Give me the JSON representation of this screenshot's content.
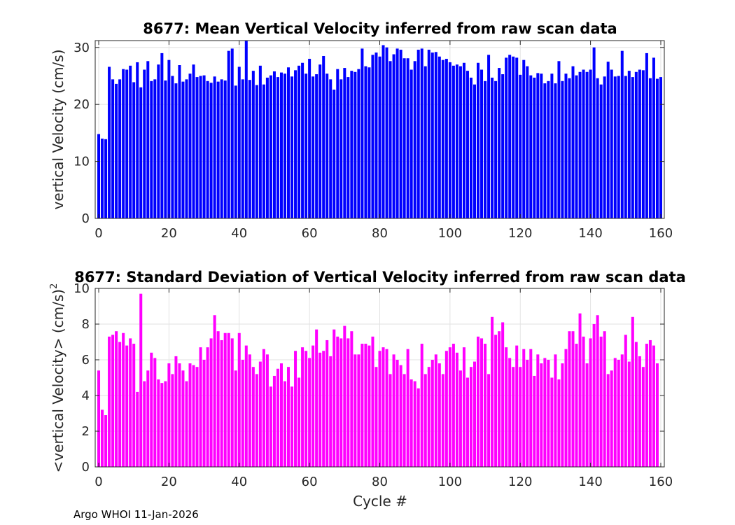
{
  "footer": "Argo WHOI 11-Jan-2026",
  "chart_data": [
    {
      "type": "bar",
      "title": "8677: Mean Vertical Velocity inferred from raw scan data",
      "xlabel": "",
      "ylabel": "vertical Velocity (cm/s)",
      "xlim": [
        -1,
        161
      ],
      "ylim": [
        0,
        31.2
      ],
      "xticks": [
        0,
        20,
        40,
        60,
        80,
        100,
        120,
        140,
        160
      ],
      "yticks": [
        0,
        10,
        20,
        30
      ],
      "grid": true,
      "color": "#0000ff",
      "x_start": 0,
      "values": [
        14.8,
        14.0,
        13.9,
        26.6,
        24.4,
        23.6,
        24.4,
        26.2,
        26.1,
        26.8,
        23.9,
        27.4,
        23.0,
        26.1,
        27.6,
        24.1,
        24.4,
        27.0,
        29.0,
        24.2,
        27.8,
        25.0,
        23.7,
        26.9,
        24.0,
        24.4,
        25.4,
        27.0,
        24.8,
        25.0,
        25.1,
        24.1,
        23.8,
        24.9,
        24.0,
        24.4,
        24.2,
        29.4,
        29.8,
        23.3,
        26.6,
        24.4,
        31.2,
        24.3,
        25.9,
        23.4,
        26.8,
        23.5,
        24.7,
        25.1,
        25.8,
        24.8,
        25.6,
        25.4,
        26.5,
        24.9,
        26.0,
        26.8,
        27.3,
        25.4,
        28.0,
        24.9,
        25.3,
        27.0,
        28.5,
        25.4,
        24.4,
        22.6,
        26.2,
        24.4,
        26.4,
        24.8,
        25.9,
        25.7,
        26.2,
        29.8,
        26.7,
        26.5,
        28.7,
        29.1,
        28.4,
        30.4,
        30.0,
        27.6,
        28.8,
        29.8,
        29.6,
        28.1,
        28.1,
        26.1,
        27.6,
        29.6,
        29.8,
        26.7,
        29.6,
        29.1,
        29.2,
        28.4,
        27.8,
        28.0,
        27.4,
        26.8,
        27.0,
        26.7,
        27.3,
        25.9,
        24.7,
        23.5,
        27.3,
        26.1,
        24.1,
        28.7,
        24.7,
        24.1,
        26.4,
        25.3,
        28.2,
        28.7,
        28.4,
        28.2,
        25.2,
        27.8,
        26.7,
        25.1,
        24.7,
        25.5,
        25.4,
        23.7,
        24.1,
        25.4,
        23.7,
        27.6,
        24.1,
        25.4,
        24.6,
        26.7,
        25.1,
        25.7,
        26.1,
        25.7,
        26.1,
        30.0,
        24.6,
        23.5,
        24.9,
        27.5,
        26.1,
        24.9,
        25.0,
        29.4,
        25.0,
        25.9,
        24.8,
        25.7,
        26.1,
        26.0,
        29.0,
        24.6,
        28.2,
        24.5,
        24.8
      ]
    },
    {
      "type": "bar",
      "title": "8677: Standard Deviation of Vertical Velocity inferred from raw scan data",
      "xlabel": "Cycle #",
      "ylabel": "<vertical Velocity> (cm/s)",
      "ylabel_exponent": "2",
      "xlim": [
        -1,
        161
      ],
      "ylim": [
        0,
        10
      ],
      "xticks": [
        0,
        20,
        40,
        60,
        80,
        100,
        120,
        140,
        160
      ],
      "yticks": [
        0,
        2,
        4,
        6,
        8,
        10
      ],
      "grid": true,
      "color": "#ff00ff",
      "x_start": 0,
      "values": [
        5.4,
        3.2,
        2.9,
        7.3,
        7.4,
        7.6,
        7.0,
        7.5,
        6.8,
        7.2,
        6.9,
        4.2,
        9.7,
        4.8,
        5.4,
        6.4,
        6.1,
        4.9,
        4.7,
        4.8,
        5.8,
        5.2,
        6.2,
        5.8,
        5.4,
        4.8,
        5.8,
        5.7,
        5.6,
        6.7,
        6.0,
        6.7,
        7.2,
        8.5,
        7.6,
        7.1,
        7.5,
        7.5,
        7.2,
        5.4,
        7.5,
        6.0,
        6.8,
        6.3,
        5.6,
        5.2,
        5.9,
        6.6,
        6.3,
        4.5,
        5.1,
        5.5,
        5.8,
        4.8,
        5.6,
        4.5,
        6.5,
        5.0,
        6.7,
        6.5,
        6.1,
        6.8,
        7.7,
        6.4,
        6.5,
        7.1,
        6.2,
        7.7,
        7.3,
        7.2,
        7.9,
        7.2,
        7.6,
        6.3,
        6.3,
        6.9,
        6.9,
        6.8,
        7.3,
        5.6,
        6.5,
        6.7,
        6.6,
        5.2,
        6.3,
        6.0,
        5.7,
        5.2,
        6.6,
        4.9,
        4.8,
        4.4,
        6.9,
        5.2,
        5.6,
        6.0,
        6.3,
        5.8,
        5.2,
        6.5,
        6.7,
        6.9,
        6.4,
        5.4,
        6.7,
        5.0,
        5.6,
        5.9,
        7.3,
        7.2,
        6.9,
        5.2,
        8.4,
        7.4,
        7.6,
        8.1,
        6.7,
        6.1,
        5.6,
        6.8,
        5.6,
        6.6,
        6.0,
        6.6,
        5.1,
        6.3,
        5.8,
        6.1,
        6.0,
        5.0,
        6.3,
        4.9,
        5.8,
        6.6,
        7.6,
        7.6,
        6.9,
        8.6,
        7.3,
        5.8,
        7.2,
        8.0,
        8.5,
        7.3,
        7.6,
        5.2,
        5.4,
        6.1,
        6.0,
        6.3,
        7.4,
        5.9,
        8.4,
        7.0,
        6.2,
        5.6,
        6.9,
        7.1,
        6.8,
        5.8
      ]
    }
  ]
}
